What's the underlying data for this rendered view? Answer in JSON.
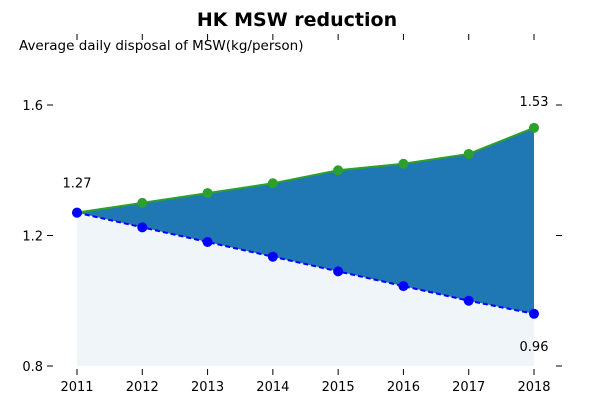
{
  "chart_data": {
    "type": "area",
    "title": "HK MSW reduction",
    "ylabel": "Average daily disposal of MSW(kg/person)",
    "xlabel": "",
    "x": [
      "2011",
      "2012",
      "2013",
      "2014",
      "2015",
      "2016",
      "2017",
      "2018"
    ],
    "series": [
      {
        "values": [
          1.27,
          1.3,
          1.33,
          1.36,
          1.4,
          1.42,
          1.45,
          1.53
        ],
        "color": "#2ca02c",
        "style": "solid"
      },
      {
        "values": [
          1.27,
          1.225,
          1.18,
          1.135,
          1.09,
          1.045,
          1.0,
          0.96
        ],
        "color": "#0000ff",
        "style": "dashed"
      }
    ],
    "fill_between_color": "#1f77b4",
    "fill_below_color": "#f0f5fa",
    "ylim": [
      0.8,
      1.6
    ],
    "yticks": [
      "0.8",
      "1.2",
      "1.6"
    ],
    "annotations": [
      "1.27",
      "1.53",
      "0.96"
    ],
    "grid": false
  }
}
